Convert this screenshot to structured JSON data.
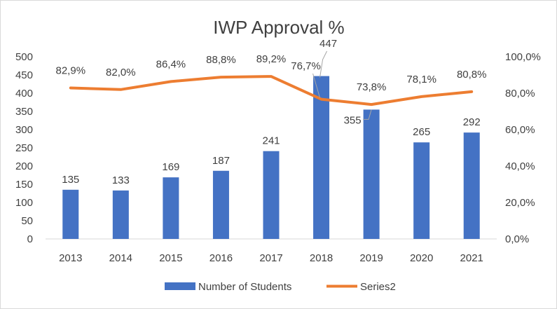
{
  "chart_data": {
    "type": "bar",
    "title": "IWP Approval %",
    "categories": [
      "2013",
      "2014",
      "2015",
      "2016",
      "2017",
      "2018",
      "2019",
      "2020",
      "2021"
    ],
    "series": [
      {
        "name": "Number of Students",
        "type": "bar",
        "axis": "left",
        "color": "#4472c4",
        "values": [
          135,
          133,
          169,
          187,
          241,
          447,
          355,
          265,
          292
        ],
        "labels": [
          "135",
          "133",
          "169",
          "187",
          "241",
          "447",
          "355",
          "265",
          "292"
        ]
      },
      {
        "name": "Series2",
        "type": "line",
        "axis": "right",
        "color": "#ed7d31",
        "values": [
          82.9,
          82.0,
          86.4,
          88.8,
          89.2,
          76.7,
          73.8,
          78.1,
          80.8
        ],
        "labels": [
          "82,9%",
          "82,0%",
          "86,4%",
          "88,8%",
          "89,2%",
          "76,7%",
          "73,8%",
          "78,1%",
          "80,8%"
        ]
      }
    ],
    "y_left": {
      "range": [
        0,
        500
      ],
      "ticks": [
        0,
        50,
        100,
        150,
        200,
        250,
        300,
        350,
        400,
        450,
        500
      ],
      "tick_labels": [
        "0",
        "50",
        "100",
        "150",
        "200",
        "250",
        "300",
        "350",
        "400",
        "450",
        "500"
      ]
    },
    "y_right": {
      "range": [
        0,
        100
      ],
      "ticks": [
        0,
        20,
        40,
        60,
        80,
        100
      ],
      "tick_labels": [
        "0,0%",
        "20,0%",
        "40,0%",
        "60,0%",
        "80,0%",
        "100,0%"
      ]
    },
    "grid": false,
    "legend": "bottom"
  }
}
